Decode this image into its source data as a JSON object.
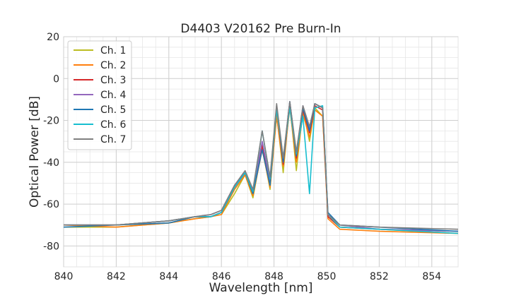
{
  "chart_data": {
    "type": "line",
    "title": "D4403 V20162 Pre Burn-In",
    "xlabel": "Wavelength [nm]",
    "ylabel": "Optical Power [dB]",
    "xlim": [
      840,
      855
    ],
    "ylim": [
      -90,
      20
    ],
    "xticks": [
      840,
      842,
      844,
      846,
      848,
      850,
      852,
      854
    ],
    "yticks": [
      -80,
      -60,
      -40,
      -20,
      0,
      20
    ],
    "grid": true,
    "legend_position": "top-left",
    "series": [
      {
        "name": "Ch. 1",
        "color": "#bcbd22",
        "points": [
          [
            840,
            -71
          ],
          [
            842,
            -71
          ],
          [
            844,
            -69
          ],
          [
            845,
            -67
          ],
          [
            845.6,
            -66
          ],
          [
            846,
            -65
          ],
          [
            846.5,
            -55
          ],
          [
            846.9,
            -46
          ],
          [
            847.2,
            -57
          ],
          [
            847.55,
            -33
          ],
          [
            847.85,
            -53
          ],
          [
            848.1,
            -17
          ],
          [
            848.35,
            -45
          ],
          [
            848.6,
            -12
          ],
          [
            848.85,
            -44
          ],
          [
            849.1,
            -15
          ],
          [
            849.35,
            -30
          ],
          [
            849.55,
            -14
          ],
          [
            849.85,
            -18
          ],
          [
            850.05,
            -66
          ],
          [
            850.5,
            -71
          ],
          [
            852,
            -72
          ],
          [
            855,
            -74
          ]
        ]
      },
      {
        "name": "Ch. 2",
        "color": "#ff7f0e",
        "points": [
          [
            840,
            -70
          ],
          [
            842,
            -71
          ],
          [
            844,
            -69
          ],
          [
            845,
            -67
          ],
          [
            845.6,
            -66
          ],
          [
            846,
            -65
          ],
          [
            846.5,
            -53
          ],
          [
            846.9,
            -46
          ],
          [
            847.2,
            -56
          ],
          [
            847.55,
            -34
          ],
          [
            847.85,
            -52
          ],
          [
            848.1,
            -18
          ],
          [
            848.35,
            -42
          ],
          [
            848.6,
            -14
          ],
          [
            848.85,
            -40
          ],
          [
            849.1,
            -17
          ],
          [
            849.35,
            -28
          ],
          [
            849.55,
            -15
          ],
          [
            849.85,
            -18
          ],
          [
            850.05,
            -67
          ],
          [
            850.5,
            -72
          ],
          [
            852,
            -73
          ],
          [
            855,
            -74
          ]
        ]
      },
      {
        "name": "Ch. 3",
        "color": "#d62728",
        "points": [
          [
            840,
            -70
          ],
          [
            842,
            -70
          ],
          [
            844,
            -68
          ],
          [
            845,
            -66
          ],
          [
            845.6,
            -66
          ],
          [
            846,
            -64
          ],
          [
            846.5,
            -52
          ],
          [
            846.9,
            -45
          ],
          [
            847.2,
            -54
          ],
          [
            847.55,
            -32
          ],
          [
            847.85,
            -50
          ],
          [
            848.1,
            -14
          ],
          [
            848.35,
            -41
          ],
          [
            848.6,
            -12
          ],
          [
            848.85,
            -38
          ],
          [
            849.1,
            -15
          ],
          [
            849.35,
            -26
          ],
          [
            849.55,
            -13
          ],
          [
            849.85,
            -15
          ],
          [
            850.05,
            -66
          ],
          [
            850.5,
            -71
          ],
          [
            852,
            -72
          ],
          [
            855,
            -73
          ]
        ]
      },
      {
        "name": "Ch. 4",
        "color": "#9467bd",
        "points": [
          [
            840,
            -70
          ],
          [
            842,
            -70
          ],
          [
            844,
            -68
          ],
          [
            845,
            -66
          ],
          [
            845.6,
            -65
          ],
          [
            846,
            -63
          ],
          [
            846.5,
            -51
          ],
          [
            846.9,
            -45
          ],
          [
            847.2,
            -54
          ],
          [
            847.55,
            -30
          ],
          [
            847.85,
            -49
          ],
          [
            848.1,
            -13
          ],
          [
            848.35,
            -39
          ],
          [
            848.6,
            -11
          ],
          [
            848.85,
            -36
          ],
          [
            849.1,
            -13
          ],
          [
            849.35,
            -24
          ],
          [
            849.55,
            -12
          ],
          [
            849.85,
            -14
          ],
          [
            850.05,
            -65
          ],
          [
            850.5,
            -70
          ],
          [
            852,
            -72
          ],
          [
            855,
            -73
          ]
        ]
      },
      {
        "name": "Ch. 5",
        "color": "#1f77b4",
        "points": [
          [
            840,
            -71
          ],
          [
            842,
            -70
          ],
          [
            844,
            -69
          ],
          [
            845,
            -66
          ],
          [
            845.6,
            -66
          ],
          [
            846,
            -64
          ],
          [
            846.5,
            -52
          ],
          [
            846.9,
            -45
          ],
          [
            847.2,
            -55
          ],
          [
            847.55,
            -34
          ],
          [
            847.85,
            -51
          ],
          [
            848.1,
            -13
          ],
          [
            848.35,
            -40
          ],
          [
            848.6,
            -11
          ],
          [
            848.85,
            -37
          ],
          [
            849.1,
            -14
          ],
          [
            849.35,
            -25
          ],
          [
            849.55,
            -12
          ],
          [
            849.85,
            -14
          ],
          [
            850.05,
            -64
          ],
          [
            850.5,
            -70
          ],
          [
            852,
            -71
          ],
          [
            855,
            -73
          ]
        ]
      },
      {
        "name": "Ch. 6",
        "color": "#17becf",
        "points": [
          [
            840,
            -70
          ],
          [
            842,
            -70
          ],
          [
            844,
            -68
          ],
          [
            845,
            -66
          ],
          [
            845.6,
            -66
          ],
          [
            846,
            -64
          ],
          [
            846.5,
            -52
          ],
          [
            846.9,
            -45
          ],
          [
            847.2,
            -54
          ],
          [
            847.55,
            -25
          ],
          [
            847.85,
            -48
          ],
          [
            848.1,
            -15
          ],
          [
            848.35,
            -38
          ],
          [
            848.6,
            -14
          ],
          [
            848.85,
            -36
          ],
          [
            849.1,
            -18
          ],
          [
            849.35,
            -55
          ],
          [
            849.55,
            -14
          ],
          [
            849.85,
            -13
          ],
          [
            850.05,
            -65
          ],
          [
            850.5,
            -71
          ],
          [
            852,
            -72
          ],
          [
            855,
            -74
          ]
        ]
      },
      {
        "name": "Ch. 7",
        "color": "#7f7f7f",
        "points": [
          [
            840,
            -70
          ],
          [
            842,
            -70
          ],
          [
            844,
            -68
          ],
          [
            845,
            -66
          ],
          [
            845.6,
            -65
          ],
          [
            846,
            -63
          ],
          [
            846.5,
            -51
          ],
          [
            846.9,
            -44
          ],
          [
            847.2,
            -53
          ],
          [
            847.55,
            -25
          ],
          [
            847.85,
            -47
          ],
          [
            848.1,
            -12
          ],
          [
            848.35,
            -38
          ],
          [
            848.6,
            -11
          ],
          [
            848.85,
            -35
          ],
          [
            849.1,
            -13
          ],
          [
            849.35,
            -23
          ],
          [
            849.55,
            -12
          ],
          [
            849.85,
            -14
          ],
          [
            850.05,
            -65
          ],
          [
            850.5,
            -70
          ],
          [
            852,
            -71
          ],
          [
            855,
            -72
          ]
        ]
      }
    ]
  }
}
